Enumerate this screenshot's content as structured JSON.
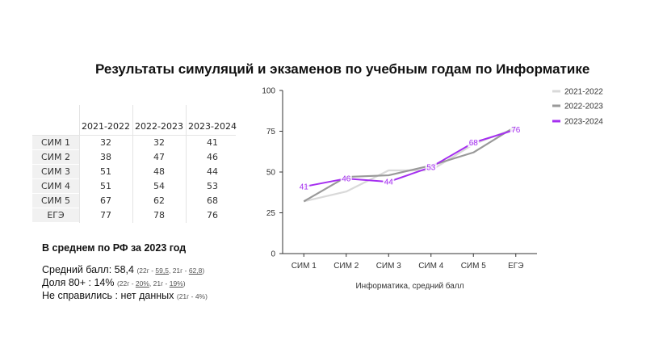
{
  "page": {
    "title": "Результаты симуляций и экзаменов по учебным годам по Информатике"
  },
  "table": {
    "columns": [
      "2021-2022",
      "2022-2023",
      "2023-2024"
    ],
    "rows": [
      {
        "label": "СИМ 1",
        "values": [
          "32",
          "32",
          "41"
        ]
      },
      {
        "label": "СИМ 2",
        "values": [
          "38",
          "47",
          "46"
        ]
      },
      {
        "label": "СИМ 3",
        "values": [
          "51",
          "48",
          "44"
        ]
      },
      {
        "label": "СИМ 4",
        "values": [
          "51",
          "54",
          "53"
        ]
      },
      {
        "label": "СИМ 5",
        "values": [
          "67",
          "62",
          "68"
        ]
      },
      {
        "label": "ЕГЭ",
        "values": [
          "77",
          "78",
          "76"
        ]
      }
    ]
  },
  "averages": {
    "title": "В среднем по РФ за 2023 год",
    "score_main": "Средний балл: 58,4",
    "score_note_a": "(22г - ",
    "score_note_b": "59,5",
    "score_note_c": ", 21г - ",
    "score_note_d": "62,8",
    "score_note_e": ")",
    "share_main": "Доля 80+ : 14%",
    "share_note_a": "(22г - ",
    "share_note_b": "20%",
    "share_note_c": ", 21г - ",
    "share_note_d": "19%",
    "share_note_e": ")",
    "fail_main": "Не справились : нет данных",
    "fail_note": "(21г - 4%)"
  },
  "chart_data": {
    "type": "line",
    "title": "",
    "xlabel": "Информатика, средний балл",
    "ylabel": "",
    "categories": [
      "СИМ 1",
      "СИМ 2",
      "СИМ 3",
      "СИМ 4",
      "СИМ 5",
      "ЕГЭ"
    ],
    "ylim": [
      0,
      100
    ],
    "yticks": [
      0,
      25,
      50,
      75,
      100
    ],
    "grid": false,
    "legend": "top-right",
    "series": [
      {
        "name": "2021-2022",
        "values": [
          32,
          38,
          51,
          51,
          67,
          77
        ],
        "color": "#d9d9d9",
        "data_labels": false
      },
      {
        "name": "2022-2023",
        "values": [
          32,
          47,
          48,
          54,
          62,
          78
        ],
        "color": "#999999",
        "data_labels": false
      },
      {
        "name": "2023-2024",
        "values": [
          41,
          46,
          44,
          53,
          68,
          76
        ],
        "color": "#a52ff0",
        "data_labels": true
      }
    ]
  }
}
